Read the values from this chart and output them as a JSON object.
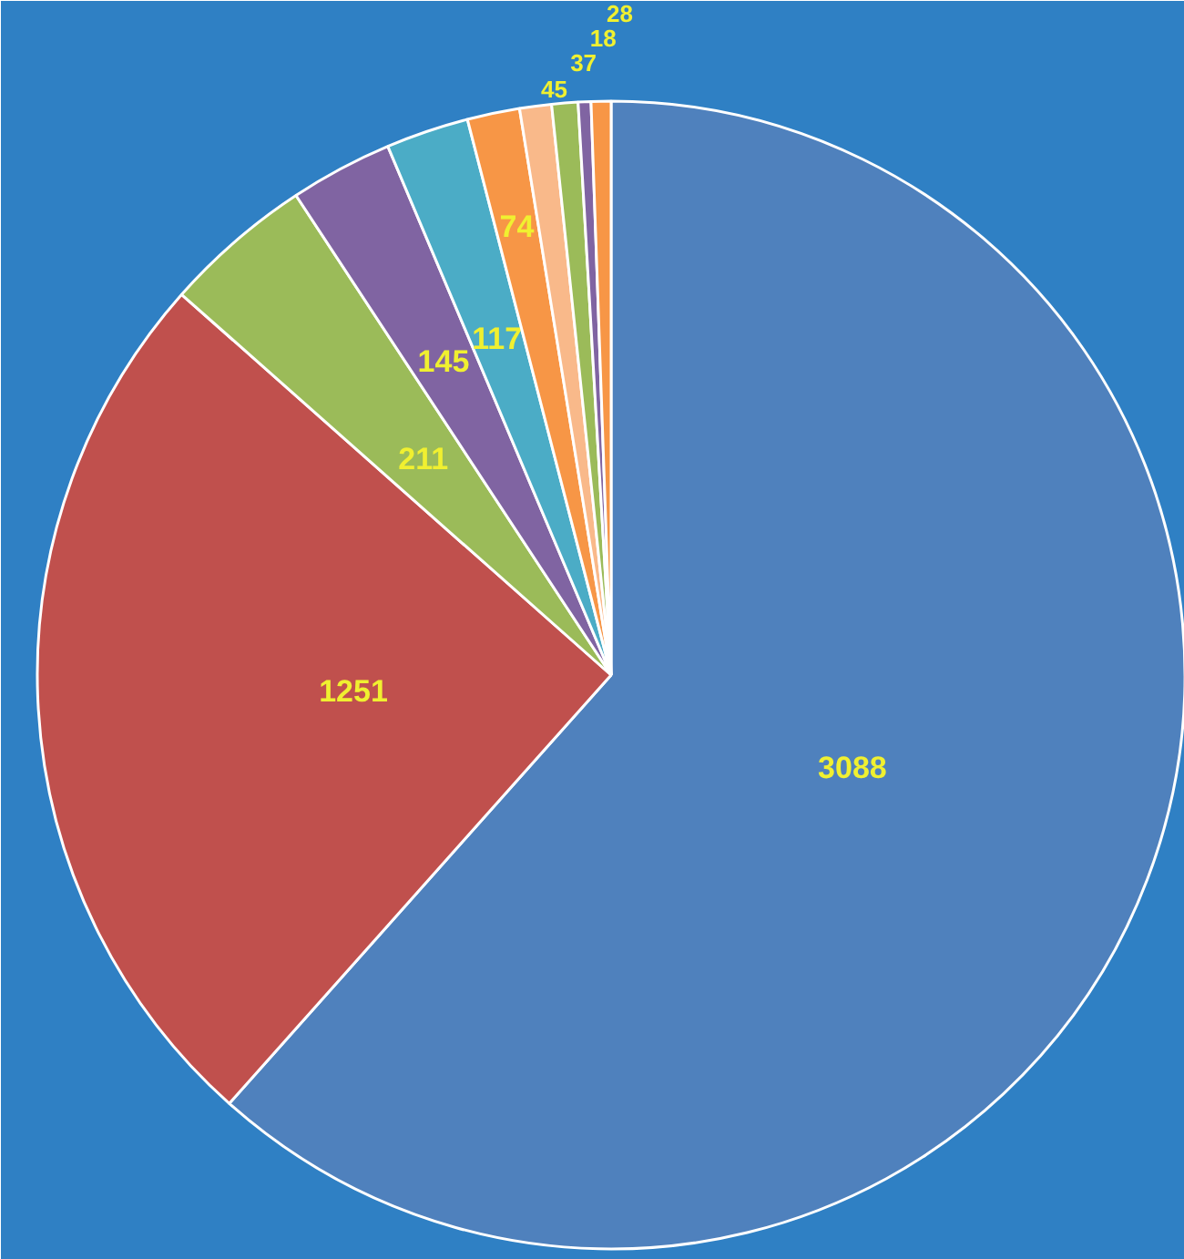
{
  "chart_data": {
    "type": "pie",
    "categories": [
      null,
      null,
      null,
      null,
      null,
      null,
      null,
      null,
      null,
      null
    ],
    "values": [
      3088,
      1251,
      211,
      145,
      117,
      74,
      45,
      37,
      18,
      28
    ],
    "colors": [
      "#4f81bd",
      "#c0504d",
      "#9bbb59",
      "#8064a2",
      "#4bacc6",
      "#f79646",
      "#f9b98a",
      "#9bbb59",
      "#8064a2",
      "#f79646"
    ],
    "data_labels": true
  }
}
